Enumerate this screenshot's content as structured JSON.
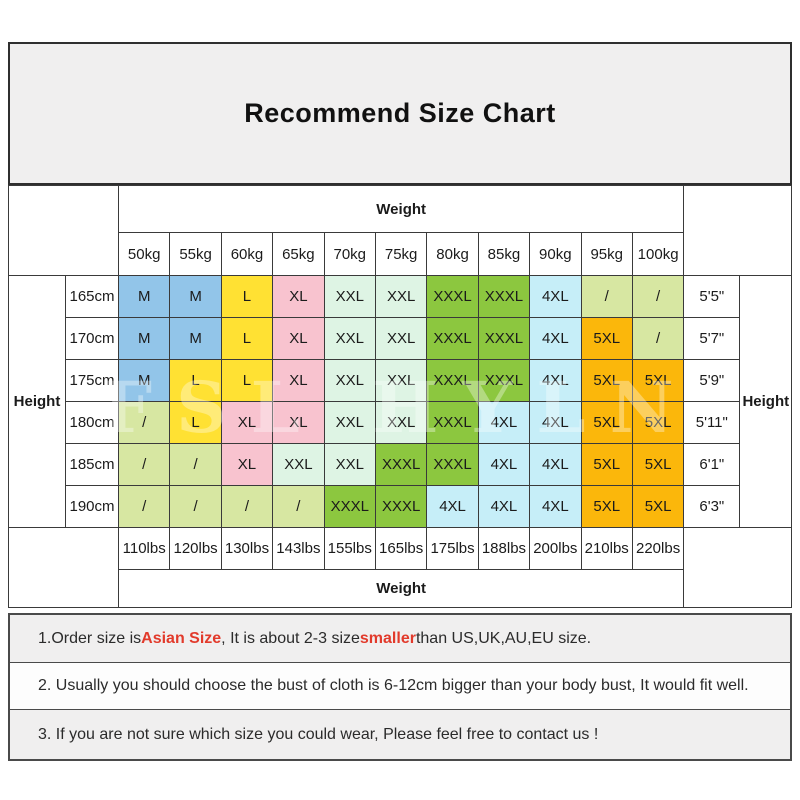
{
  "title": "Recommend Size Chart",
  "watermark": "FSL HYLN",
  "colors": {
    "accent_red": "#e23a2b",
    "border_dark": "#3a3a3a",
    "panel_gray": "#f0efef"
  },
  "size_colors": {
    "M": "#92c5e9",
    "L": "#ffe133",
    "XL": "#f8c3cf",
    "XXL": "#def4e4",
    "XXXL": "#8cc73f",
    "4XL": "#c6eef8",
    "5XL": "#fbb70b",
    "/": "#d7e7a2"
  },
  "table": {
    "weight_header_top": "Weight",
    "weight_header_bottom": "Weight",
    "height_label_left": "Height",
    "height_label_right": "Height",
    "weight_kg": [
      "50kg",
      "55kg",
      "60kg",
      "65kg",
      "70kg",
      "75kg",
      "80kg",
      "85kg",
      "90kg",
      "95kg",
      "100kg"
    ],
    "weight_lbs": [
      "110lbs",
      "120lbs",
      "130lbs",
      "143lbs",
      "155lbs",
      "165lbs",
      "175lbs",
      "188lbs",
      "200lbs",
      "210lbs",
      "220lbs"
    ],
    "rows": [
      {
        "height_cm": "165cm",
        "height_ft": "5'5\"",
        "sizes": [
          "M",
          "M",
          "L",
          "XL",
          "XXL",
          "XXL",
          "XXXL",
          "XXXL",
          "4XL",
          "/",
          "/"
        ]
      },
      {
        "height_cm": "170cm",
        "height_ft": "5'7\"",
        "sizes": [
          "M",
          "M",
          "L",
          "XL",
          "XXL",
          "XXL",
          "XXXL",
          "XXXL",
          "4XL",
          "5XL",
          "/"
        ]
      },
      {
        "height_cm": "175cm",
        "height_ft": "5'9\"",
        "sizes": [
          "M",
          "L",
          "L",
          "XL",
          "XXL",
          "XXL",
          "XXXL",
          "XXXL",
          "4XL",
          "5XL",
          "5XL"
        ]
      },
      {
        "height_cm": "180cm",
        "height_ft": "5'11\"",
        "sizes": [
          "/",
          "L",
          "XL",
          "XL",
          "XXL",
          "XXL",
          "XXXL",
          "4XL",
          "4XL",
          "5XL",
          "5XL"
        ]
      },
      {
        "height_cm": "185cm",
        "height_ft": "6'1\"",
        "sizes": [
          "/",
          "/",
          "XL",
          "XXL",
          "XXL",
          "XXXL",
          "XXXL",
          "4XL",
          "4XL",
          "5XL",
          "5XL"
        ]
      },
      {
        "height_cm": "190cm",
        "height_ft": "6'3\"",
        "sizes": [
          "/",
          "/",
          "/",
          "/",
          "XXXL",
          "XXXL",
          "4XL",
          "4XL",
          "4XL",
          "5XL",
          "5XL"
        ]
      }
    ]
  },
  "notes": [
    {
      "parts": [
        {
          "text": "1.Order size is ",
          "red": false
        },
        {
          "text": "Asian Size",
          "red": true
        },
        {
          "text": ", It is about 2-3 size ",
          "red": false
        },
        {
          "text": "smaller",
          "red": true
        },
        {
          "text": " than US,UK,AU,EU size.",
          "red": false
        }
      ]
    },
    {
      "parts": [
        {
          "text": "2. Usually you should choose the bust of cloth is 6-12cm bigger than your body bust, It would fit well.",
          "red": false
        }
      ]
    },
    {
      "parts": [
        {
          "text": "3. If you are not sure which size you could wear, Please feel free to contact us !",
          "red": false
        }
      ]
    }
  ]
}
